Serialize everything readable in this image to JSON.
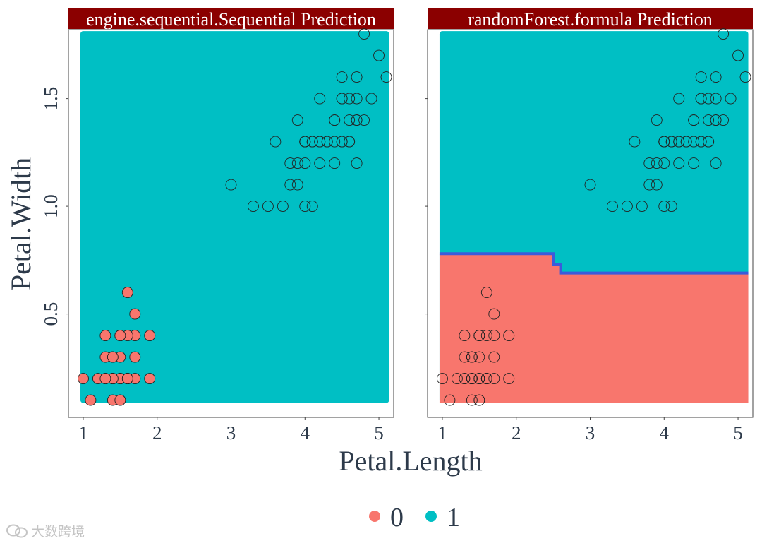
{
  "chart_data": {
    "type": "scatter",
    "xlabel": "Petal.Length",
    "ylabel": "Petal.Width",
    "xlim": [
      0.8,
      5.2
    ],
    "ylim": [
      0.02,
      1.82
    ],
    "x_ticks": [
      1,
      2,
      3,
      4,
      5
    ],
    "x_tick_labels": [
      "1",
      "2",
      "3",
      "4",
      "5"
    ],
    "y_ticks": [
      0.5,
      1.0,
      1.5
    ],
    "y_tick_labels": [
      "0.5",
      "1.0",
      "1.5"
    ],
    "grid": false,
    "legend_position": "bottom",
    "legend": [
      {
        "label": "0",
        "color": "#F8766D"
      },
      {
        "label": "1",
        "color": "#00BFC4"
      }
    ],
    "points": [
      {
        "x": 1.4,
        "y": 0.2,
        "c": 0
      },
      {
        "x": 1.4,
        "y": 0.2,
        "c": 0
      },
      {
        "x": 1.3,
        "y": 0.2,
        "c": 0
      },
      {
        "x": 1.5,
        "y": 0.2,
        "c": 0
      },
      {
        "x": 1.4,
        "y": 0.2,
        "c": 0
      },
      {
        "x": 1.7,
        "y": 0.4,
        "c": 0
      },
      {
        "x": 1.4,
        "y": 0.3,
        "c": 0
      },
      {
        "x": 1.5,
        "y": 0.2,
        "c": 0
      },
      {
        "x": 1.4,
        "y": 0.2,
        "c": 0
      },
      {
        "x": 1.5,
        "y": 0.1,
        "c": 0
      },
      {
        "x": 1.5,
        "y": 0.2,
        "c": 0
      },
      {
        "x": 1.6,
        "y": 0.2,
        "c": 0
      },
      {
        "x": 1.4,
        "y": 0.1,
        "c": 0
      },
      {
        "x": 1.1,
        "y": 0.1,
        "c": 0
      },
      {
        "x": 1.2,
        "y": 0.2,
        "c": 0
      },
      {
        "x": 1.5,
        "y": 0.4,
        "c": 0
      },
      {
        "x": 1.3,
        "y": 0.4,
        "c": 0
      },
      {
        "x": 1.4,
        "y": 0.3,
        "c": 0
      },
      {
        "x": 1.7,
        "y": 0.3,
        "c": 0
      },
      {
        "x": 1.5,
        "y": 0.3,
        "c": 0
      },
      {
        "x": 1.7,
        "y": 0.2,
        "c": 0
      },
      {
        "x": 1.5,
        "y": 0.4,
        "c": 0
      },
      {
        "x": 1.0,
        "y": 0.2,
        "c": 0
      },
      {
        "x": 1.7,
        "y": 0.5,
        "c": 0
      },
      {
        "x": 1.9,
        "y": 0.2,
        "c": 0
      },
      {
        "x": 1.6,
        "y": 0.2,
        "c": 0
      },
      {
        "x": 1.6,
        "y": 0.4,
        "c": 0
      },
      {
        "x": 1.5,
        "y": 0.2,
        "c": 0
      },
      {
        "x": 1.4,
        "y": 0.2,
        "c": 0
      },
      {
        "x": 1.6,
        "y": 0.2,
        "c": 0
      },
      {
        "x": 1.5,
        "y": 0.4,
        "c": 0
      },
      {
        "x": 1.3,
        "y": 0.2,
        "c": 0
      },
      {
        "x": 1.5,
        "y": 0.1,
        "c": 0
      },
      {
        "x": 1.3,
        "y": 0.3,
        "c": 0
      },
      {
        "x": 1.6,
        "y": 0.6,
        "c": 0
      },
      {
        "x": 1.9,
        "y": 0.4,
        "c": 0
      },
      {
        "x": 1.4,
        "y": 0.3,
        "c": 0
      },
      {
        "x": 1.6,
        "y": 0.2,
        "c": 0
      },
      {
        "x": 4.7,
        "y": 1.4,
        "c": 1
      },
      {
        "x": 4.5,
        "y": 1.5,
        "c": 1
      },
      {
        "x": 4.9,
        "y": 1.5,
        "c": 1
      },
      {
        "x": 4.0,
        "y": 1.3,
        "c": 1
      },
      {
        "x": 4.6,
        "y": 1.5,
        "c": 1
      },
      {
        "x": 4.5,
        "y": 1.3,
        "c": 1
      },
      {
        "x": 4.7,
        "y": 1.6,
        "c": 1
      },
      {
        "x": 3.3,
        "y": 1.0,
        "c": 1
      },
      {
        "x": 4.6,
        "y": 1.3,
        "c": 1
      },
      {
        "x": 3.9,
        "y": 1.4,
        "c": 1
      },
      {
        "x": 3.5,
        "y": 1.0,
        "c": 1
      },
      {
        "x": 4.2,
        "y": 1.5,
        "c": 1
      },
      {
        "x": 4.0,
        "y": 1.0,
        "c": 1
      },
      {
        "x": 4.7,
        "y": 1.4,
        "c": 1
      },
      {
        "x": 3.6,
        "y": 1.3,
        "c": 1
      },
      {
        "x": 4.4,
        "y": 1.4,
        "c": 1
      },
      {
        "x": 4.1,
        "y": 1.0,
        "c": 1
      },
      {
        "x": 3.9,
        "y": 1.1,
        "c": 1
      },
      {
        "x": 4.8,
        "y": 1.8,
        "c": 1
      },
      {
        "x": 4.0,
        "y": 1.3,
        "c": 1
      },
      {
        "x": 4.7,
        "y": 1.2,
        "c": 1
      },
      {
        "x": 4.3,
        "y": 1.3,
        "c": 1
      },
      {
        "x": 4.4,
        "y": 1.4,
        "c": 1
      },
      {
        "x": 4.8,
        "y": 1.4,
        "c": 1
      },
      {
        "x": 5.0,
        "y": 1.7,
        "c": 1
      },
      {
        "x": 4.5,
        "y": 1.5,
        "c": 1
      },
      {
        "x": 3.8,
        "y": 1.1,
        "c": 1
      },
      {
        "x": 3.7,
        "y": 1.0,
        "c": 1
      },
      {
        "x": 5.1,
        "y": 1.6,
        "c": 1
      },
      {
        "x": 4.5,
        "y": 1.6,
        "c": 1
      },
      {
        "x": 4.7,
        "y": 1.5,
        "c": 1
      },
      {
        "x": 4.4,
        "y": 1.3,
        "c": 1
      },
      {
        "x": 4.1,
        "y": 1.3,
        "c": 1
      },
      {
        "x": 4.0,
        "y": 1.3,
        "c": 1
      },
      {
        "x": 4.4,
        "y": 1.2,
        "c": 1
      },
      {
        "x": 4.6,
        "y": 1.4,
        "c": 1
      },
      {
        "x": 4.0,
        "y": 1.2,
        "c": 1
      },
      {
        "x": 3.0,
        "y": 1.1,
        "c": 1
      },
      {
        "x": 4.2,
        "y": 1.3,
        "c": 1
      },
      {
        "x": 4.2,
        "y": 1.2,
        "c": 1
      },
      {
        "x": 4.2,
        "y": 1.3,
        "c": 1
      },
      {
        "x": 4.3,
        "y": 1.3,
        "c": 1
      },
      {
        "x": 4.1,
        "y": 1.3,
        "c": 1
      },
      {
        "x": 3.8,
        "y": 1.2,
        "c": 1
      },
      {
        "x": 4.5,
        "y": 1.3,
        "c": 1
      },
      {
        "x": 4.6,
        "y": 1.3,
        "c": 1
      },
      {
        "x": 3.9,
        "y": 1.2,
        "c": 1
      }
    ],
    "panels": [
      {
        "title": "engine.sequential.Sequential  Prediction",
        "prediction": "all class 1",
        "points_filled": true
      },
      {
        "title": "randomForest.formula  Prediction",
        "prediction": "class 0 below boundary",
        "boundary": [
          [
            1.0,
            0.78
          ],
          [
            2.5,
            0.78
          ],
          [
            2.5,
            0.73
          ],
          [
            2.6,
            0.73
          ],
          [
            2.6,
            0.69
          ],
          [
            5.1,
            0.69
          ]
        ],
        "boundary_color": "#3B5BDB",
        "points_filled": false
      }
    ],
    "colors": {
      "class0": "#F8766D",
      "class1": "#00BFC4",
      "strip_bg": "#8B0000",
      "strip_text": "#FFFFFF",
      "axis_text": "#2D3A4A"
    }
  },
  "watermark": {
    "text": "大数跨境",
    "logo": "wechat-bubble-icon"
  }
}
